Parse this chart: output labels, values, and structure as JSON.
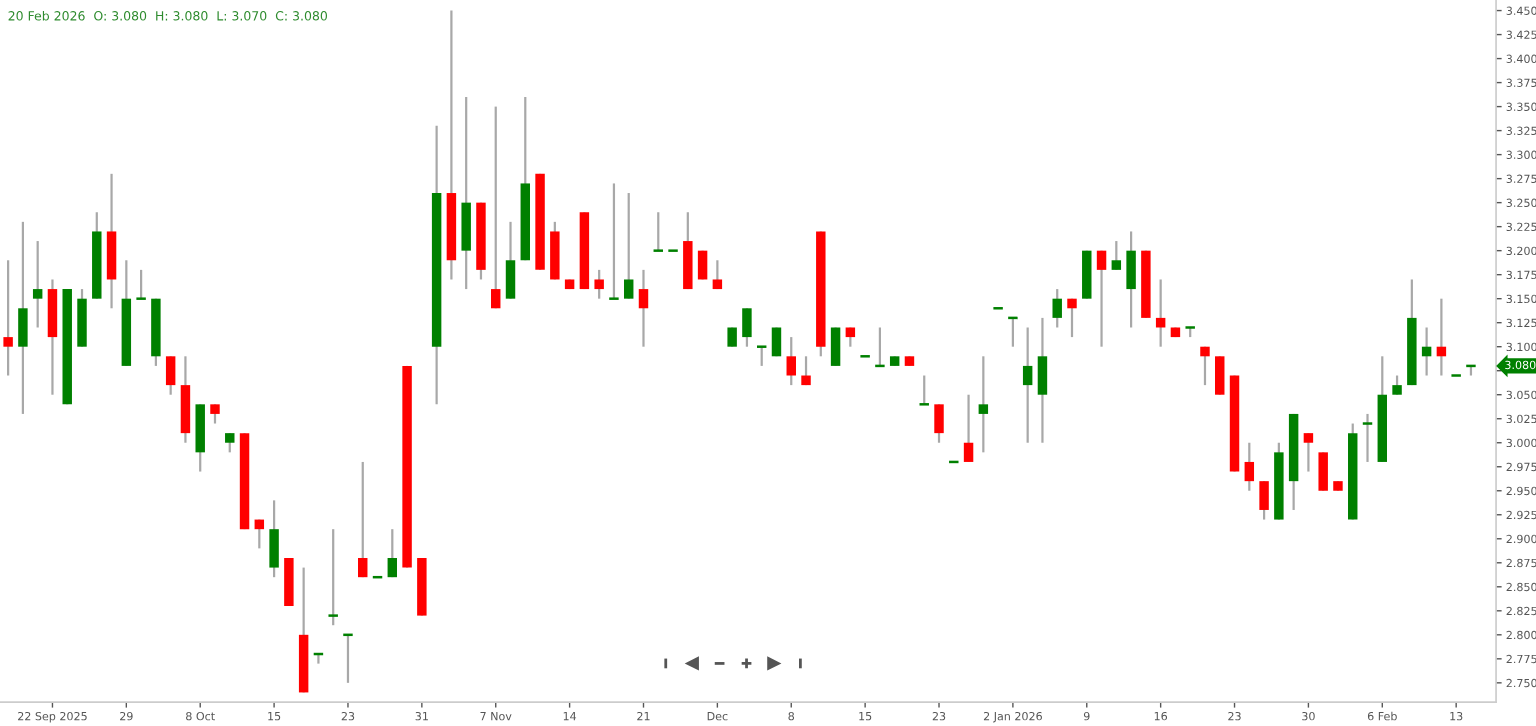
{
  "chart_data": {
    "type": "candlestick",
    "title": "20 Feb 2026  O: 3.080  H: 3.080  L: 3.070  C: 3.080",
    "categories": [
      null,
      null,
      null,
      "22 Sep 2025",
      null,
      null,
      null,
      null,
      "29",
      null,
      null,
      null,
      null,
      "8 Oct",
      null,
      null,
      null,
      null,
      "15",
      null,
      null,
      null,
      null,
      "23",
      null,
      null,
      null,
      null,
      "31",
      null,
      null,
      null,
      null,
      "7 Nov",
      null,
      null,
      null,
      null,
      "14",
      null,
      null,
      null,
      null,
      "21",
      null,
      null,
      null,
      null,
      "Dec",
      null,
      null,
      null,
      null,
      "8",
      null,
      null,
      null,
      null,
      "15",
      null,
      null,
      null,
      null,
      "23",
      null,
      null,
      null,
      null,
      "2 Jan 2026",
      null,
      null,
      null,
      null,
      "9",
      null,
      null,
      null,
      null,
      "16",
      null,
      null,
      null,
      null,
      "23",
      null,
      null,
      null,
      null,
      "30",
      null,
      null,
      null,
      null,
      "6 Feb",
      null,
      null,
      null,
      null,
      "13",
      null
    ],
    "ohlc": [
      [
        3.11,
        3.19,
        3.07,
        3.1
      ],
      [
        3.1,
        3.23,
        3.03,
        3.14
      ],
      [
        3.15,
        3.21,
        3.12,
        3.16
      ],
      [
        3.16,
        3.17,
        3.05,
        3.11
      ],
      [
        3.04,
        3.16,
        3.04,
        3.16
      ],
      [
        3.1,
        3.16,
        3.1,
        3.15
      ],
      [
        3.15,
        3.24,
        3.15,
        3.22
      ],
      [
        3.22,
        3.28,
        3.14,
        3.17
      ],
      [
        3.08,
        3.19,
        3.08,
        3.15
      ],
      [
        3.15,
        3.18,
        3.15,
        3.15
      ],
      [
        3.09,
        3.15,
        3.08,
        3.15
      ],
      [
        3.09,
        3.09,
        3.05,
        3.06
      ],
      [
        3.06,
        3.09,
        3.0,
        3.01
      ],
      [
        2.99,
        3.04,
        2.97,
        3.04
      ],
      [
        3.04,
        3.04,
        3.02,
        3.03
      ],
      [
        3.0,
        3.01,
        2.99,
        3.01
      ],
      [
        3.01,
        3.01,
        2.91,
        2.91
      ],
      [
        2.92,
        2.92,
        2.89,
        2.91
      ],
      [
        2.87,
        2.94,
        2.86,
        2.91
      ],
      [
        2.88,
        2.88,
        2.83,
        2.83
      ],
      [
        2.8,
        2.87,
        2.74,
        2.74
      ],
      [
        2.78,
        2.78,
        2.77,
        2.78
      ],
      [
        2.82,
        2.91,
        2.81,
        2.82
      ],
      [
        2.8,
        2.8,
        2.75,
        2.8
      ],
      [
        2.88,
        2.98,
        2.86,
        2.86
      ],
      [
        2.86,
        2.86,
        2.86,
        2.86
      ],
      [
        2.86,
        2.91,
        2.86,
        2.88
      ],
      [
        3.08,
        3.08,
        2.87,
        2.87
      ],
      [
        2.88,
        2.88,
        2.82,
        2.82
      ],
      [
        3.1,
        3.33,
        3.04,
        3.26
      ],
      [
        3.26,
        3.45,
        3.17,
        3.19
      ],
      [
        3.2,
        3.36,
        3.16,
        3.25
      ],
      [
        3.25,
        3.25,
        3.17,
        3.18
      ],
      [
        3.16,
        3.35,
        3.14,
        3.14
      ],
      [
        3.15,
        3.23,
        3.15,
        3.19
      ],
      [
        3.19,
        3.36,
        3.19,
        3.27
      ],
      [
        3.28,
        3.28,
        3.18,
        3.18
      ],
      [
        3.22,
        3.23,
        3.17,
        3.17
      ],
      [
        3.17,
        3.17,
        3.16,
        3.16
      ],
      [
        3.24,
        3.24,
        3.16,
        3.16
      ],
      [
        3.17,
        3.18,
        3.15,
        3.16
      ],
      [
        3.15,
        3.27,
        3.15,
        3.15
      ],
      [
        3.15,
        3.26,
        3.15,
        3.17
      ],
      [
        3.16,
        3.18,
        3.1,
        3.14
      ],
      [
        3.2,
        3.24,
        3.2,
        3.2
      ],
      [
        3.2,
        3.2,
        3.2,
        3.2
      ],
      [
        3.21,
        3.24,
        3.16,
        3.16
      ],
      [
        3.2,
        3.2,
        3.17,
        3.17
      ],
      [
        3.17,
        3.19,
        3.16,
        3.16
      ],
      [
        3.1,
        3.12,
        3.1,
        3.12
      ],
      [
        3.11,
        3.14,
        3.1,
        3.14
      ],
      [
        3.1,
        3.1,
        3.08,
        3.1
      ],
      [
        3.09,
        3.12,
        3.09,
        3.12
      ],
      [
        3.09,
        3.11,
        3.06,
        3.07
      ],
      [
        3.07,
        3.09,
        3.06,
        3.06
      ],
      [
        3.22,
        3.22,
        3.09,
        3.1
      ],
      [
        3.08,
        3.12,
        3.08,
        3.12
      ],
      [
        3.12,
        3.12,
        3.1,
        3.11
      ],
      [
        3.09,
        3.09,
        3.09,
        3.09
      ],
      [
        3.08,
        3.12,
        3.08,
        3.08
      ],
      [
        3.08,
        3.09,
        3.08,
        3.09
      ],
      [
        3.09,
        3.09,
        3.08,
        3.08
      ],
      [
        3.04,
        3.07,
        3.04,
        3.04
      ],
      [
        3.04,
        3.04,
        3.0,
        3.01
      ],
      [
        2.98,
        2.98,
        2.98,
        2.98
      ],
      [
        3.0,
        3.05,
        2.98,
        2.98
      ],
      [
        3.03,
        3.09,
        2.99,
        3.04
      ],
      [
        3.14,
        3.14,
        3.14,
        3.14
      ],
      [
        3.13,
        3.13,
        3.1,
        3.13
      ],
      [
        3.06,
        3.12,
        3.0,
        3.08
      ],
      [
        3.05,
        3.13,
        3.0,
        3.09
      ],
      [
        3.13,
        3.16,
        3.12,
        3.15
      ],
      [
        3.15,
        3.15,
        3.11,
        3.14
      ],
      [
        3.15,
        3.2,
        3.15,
        3.2
      ],
      [
        3.2,
        3.2,
        3.1,
        3.18
      ],
      [
        3.18,
        3.21,
        3.18,
        3.19
      ],
      [
        3.16,
        3.22,
        3.12,
        3.2
      ],
      [
        3.2,
        3.2,
        3.13,
        3.13
      ],
      [
        3.13,
        3.17,
        3.1,
        3.12
      ],
      [
        3.12,
        3.12,
        3.11,
        3.11
      ],
      [
        3.12,
        3.12,
        3.11,
        3.12
      ],
      [
        3.1,
        3.1,
        3.06,
        3.09
      ],
      [
        3.09,
        3.09,
        3.05,
        3.05
      ],
      [
        3.07,
        3.07,
        2.97,
        2.97
      ],
      [
        2.98,
        3.0,
        2.95,
        2.96
      ],
      [
        2.96,
        2.96,
        2.92,
        2.93
      ],
      [
        2.92,
        3.0,
        2.92,
        2.99
      ],
      [
        2.96,
        3.03,
        2.93,
        3.03
      ],
      [
        3.01,
        3.01,
        2.97,
        3.0
      ],
      [
        2.99,
        2.99,
        2.95,
        2.95
      ],
      [
        2.96,
        2.96,
        2.95,
        2.95
      ],
      [
        2.92,
        3.02,
        2.92,
        3.01
      ],
      [
        3.02,
        3.03,
        2.98,
        3.02
      ],
      [
        2.98,
        3.09,
        2.98,
        3.05
      ],
      [
        3.05,
        3.07,
        3.05,
        3.06
      ],
      [
        3.06,
        3.17,
        3.06,
        3.13
      ],
      [
        3.09,
        3.12,
        3.07,
        3.1
      ],
      [
        3.1,
        3.15,
        3.07,
        3.09
      ],
      [
        3.07,
        3.07,
        3.07,
        3.07
      ],
      [
        3.08,
        3.08,
        3.07,
        3.08
      ]
    ],
    "ylim": [
      2.73,
      3.461
    ],
    "yticks": [
      {
        "value": 2.75,
        "label": "2.750"
      },
      {
        "value": 2.775,
        "label": "2.775"
      },
      {
        "value": 2.8,
        "label": "2.800"
      },
      {
        "value": 2.825,
        "label": "2.825"
      },
      {
        "value": 2.85,
        "label": "2.850"
      },
      {
        "value": 2.875,
        "label": "2.875"
      },
      {
        "value": 2.9,
        "label": "2.900"
      },
      {
        "value": 2.925,
        "label": "2.925"
      },
      {
        "value": 2.95,
        "label": "2.950"
      },
      {
        "value": 2.975,
        "label": "2.975"
      },
      {
        "value": 3.0,
        "label": "3.000"
      },
      {
        "value": 3.025,
        "label": "3.025"
      },
      {
        "value": 3.05,
        "label": "3.050"
      },
      {
        "value": 3.075,
        "label": null
      },
      {
        "value": 3.1,
        "label": "3.100"
      },
      {
        "value": 3.125,
        "label": "3.125"
      },
      {
        "value": 3.15,
        "label": "3.150"
      },
      {
        "value": 3.175,
        "label": "3.175"
      },
      {
        "value": 3.2,
        "label": "3.200"
      },
      {
        "value": 3.225,
        "label": "3.225"
      },
      {
        "value": 3.25,
        "label": "3.250"
      },
      {
        "value": 3.275,
        "label": "3.275"
      },
      {
        "value": 3.3,
        "label": "3.300"
      },
      {
        "value": 3.325,
        "label": "3.325"
      },
      {
        "value": 3.35,
        "label": "3.350"
      },
      {
        "value": 3.375,
        "label": "3.375"
      },
      {
        "value": 3.4,
        "label": "3.400"
      },
      {
        "value": 3.425,
        "label": "3.425"
      },
      {
        "value": 3.45,
        "label": "3.450"
      }
    ],
    "annotations": [
      {
        "text": "3.080",
        "y": 3.08
      }
    ],
    "grid": false
  }
}
